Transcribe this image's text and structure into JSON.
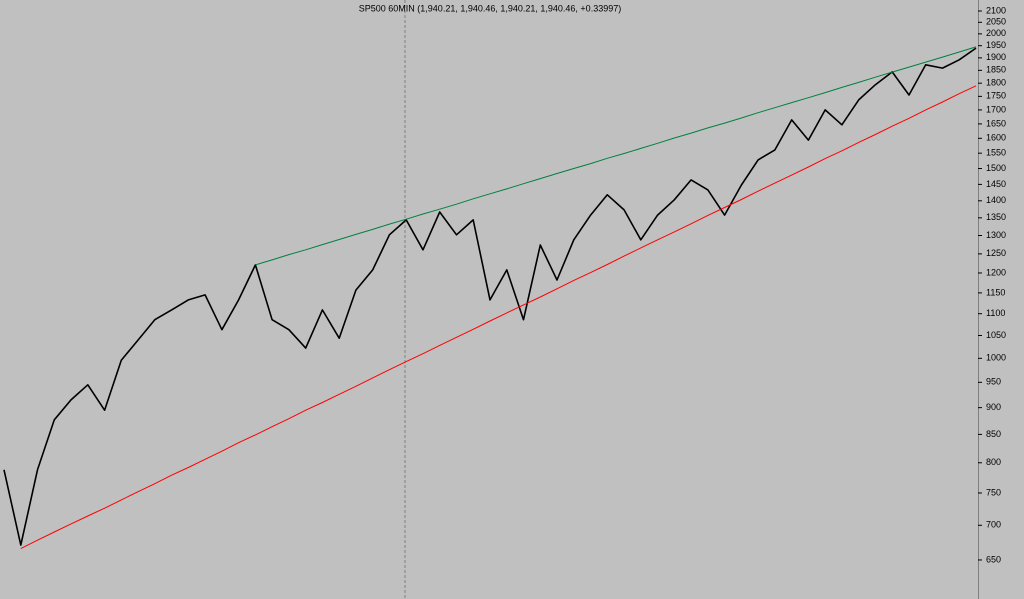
{
  "chart_data": {
    "type": "line",
    "title": "SP500 60MIN (1,940.21, 1,940.46, 1,940.21, 1,940.46, +0.33997)",
    "log_scale": true,
    "ylim": [
      598,
      2150
    ],
    "yticks": [
      650,
      700,
      750,
      800,
      850,
      900,
      950,
      1000,
      1050,
      1100,
      1150,
      1200,
      1250,
      1300,
      1350,
      1400,
      1450,
      1500,
      1550,
      1600,
      1650,
      1700,
      1750,
      1800,
      1850,
      1900,
      1950,
      2000,
      2050,
      2100
    ],
    "categories": [
      null,
      null,
      null,
      null,
      null,
      null,
      null,
      null,
      null,
      null,
      null,
      null,
      null,
      null,
      null,
      null,
      null,
      null,
      null,
      null,
      null,
      null,
      null,
      null,
      null,
      null,
      null,
      null,
      null,
      null,
      null,
      null,
      null,
      null,
      null,
      null,
      null,
      null,
      null,
      null,
      null,
      null,
      null,
      null,
      null,
      null,
      null,
      null,
      null,
      null,
      null,
      null,
      null,
      null,
      null,
      null,
      null,
      null,
      null
    ],
    "series": [
      {
        "color": "#000000",
        "width": 1.6,
        "values": [
          788,
          671,
          788,
          877,
          915,
          945,
          895,
          996,
          1040,
          1086,
          1109,
          1133,
          1145,
          1063,
          1133,
          1221,
          1086,
          1063,
          1022,
          1109,
          1044,
          1157,
          1208,
          1302,
          1344,
          1261,
          1367,
          1302,
          1344,
          1133,
          1208,
          1086,
          1274,
          1182,
          1288,
          1358,
          1418,
          1373,
          1288,
          1358,
          1403,
          1464,
          1433,
          1358,
          1448,
          1528,
          1561,
          1664,
          1594,
          1700,
          1647,
          1737,
          1794,
          1844,
          1755,
          1872,
          1859,
          1892,
          1940
        ]
      },
      {
        "color": "#008040",
        "width": 1,
        "values": [
          null,
          null,
          null,
          null,
          null,
          null,
          null,
          null,
          null,
          null,
          null,
          null,
          null,
          null,
          null,
          1221,
          1234,
          1248,
          1261,
          1275,
          1289,
          1303,
          1317,
          1332,
          1346,
          1361,
          1375,
          1390,
          1406,
          1421,
          1436,
          1452,
          1468,
          1484,
          1500,
          1516,
          1533,
          1549,
          1566,
          1583,
          1601,
          1618,
          1636,
          1653,
          1671,
          1690,
          1708,
          1727,
          1745,
          1764,
          1784,
          1803,
          1823,
          1843,
          1863,
          1883,
          1903,
          1924,
          1945
        ]
      },
      {
        "color": "#ff0000",
        "width": 1,
        "values": [
          null,
          666,
          678,
          690,
          702,
          714,
          726,
          739,
          752,
          765,
          779,
          792,
          806,
          820,
          835,
          849,
          864,
          879,
          895,
          910,
          926,
          942,
          959,
          976,
          993,
          1010,
          1028,
          1046,
          1064,
          1083,
          1102,
          1121,
          1140,
          1160,
          1181,
          1201,
          1222,
          1244,
          1266,
          1288,
          1310,
          1333,
          1357,
          1380,
          1404,
          1429,
          1454,
          1479,
          1505,
          1532,
          1558,
          1586,
          1613,
          1642,
          1670,
          1700,
          1729,
          1760,
          1790
        ]
      }
    ]
  }
}
